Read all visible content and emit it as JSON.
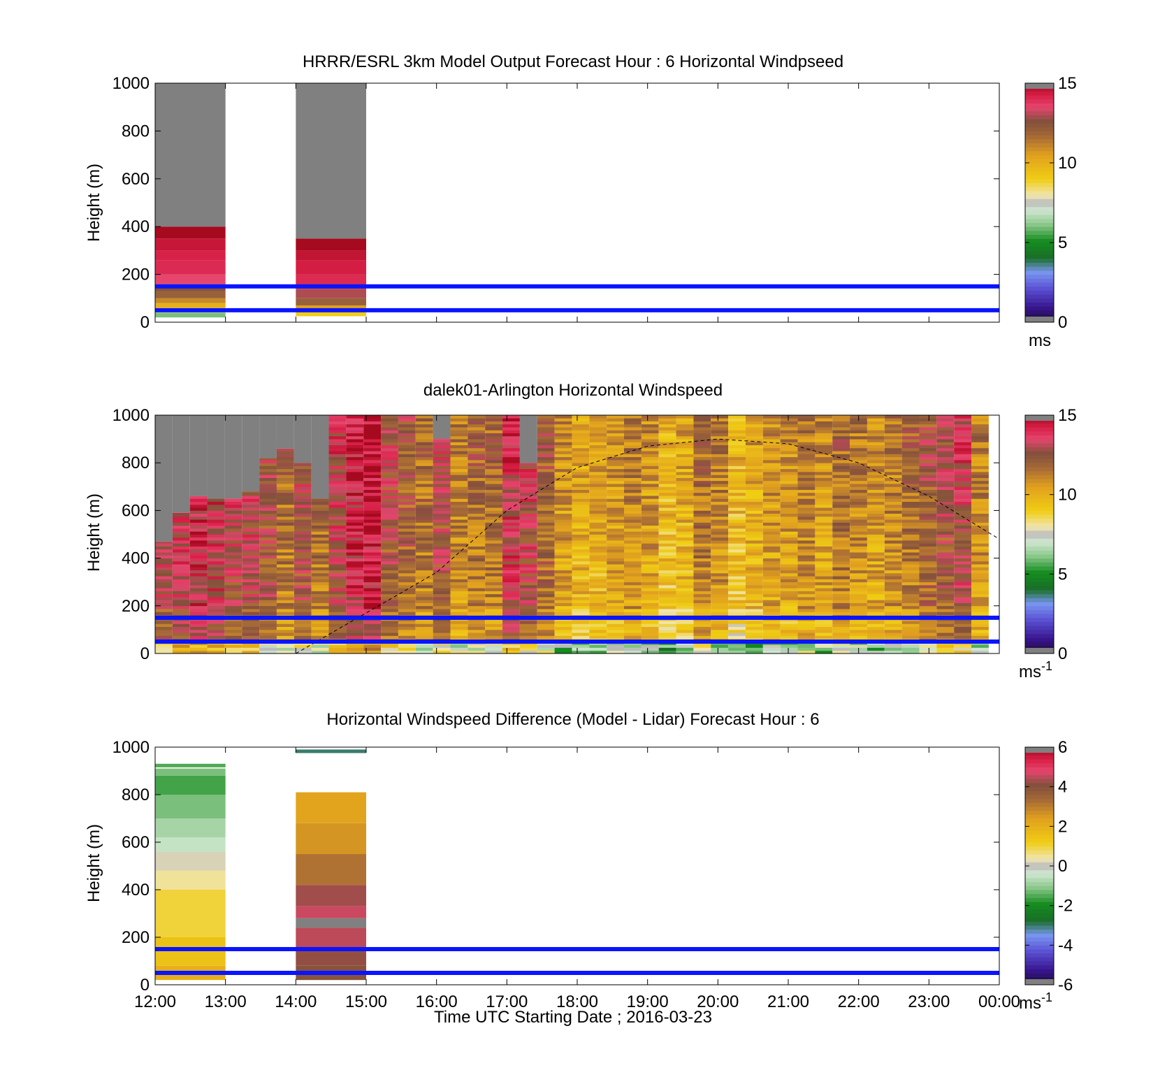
{
  "figure": {
    "xlabel": "Time UTC  Starting Date ; 2016-03-23",
    "xtick_labels": [
      "12:00",
      "13:00",
      "14:00",
      "15:00",
      "16:00",
      "17:00",
      "18:00",
      "19:00",
      "20:00",
      "21:00",
      "22:00",
      "23:00",
      "00:00"
    ],
    "ytick_labels": [
      "0",
      "200",
      "400",
      "600",
      "800",
      "1000"
    ]
  },
  "chart_data": [
    {
      "type": "heatmap",
      "title": "HRRR/ESRL 3km Model Output   Forecast Hour : 6 Horizontal Windpseed",
      "ylabel": "Height (m)",
      "xlim": [
        "12:00",
        "00:00"
      ],
      "ylim": [
        0,
        1000
      ],
      "colorbar": {
        "range": [
          0,
          15
        ],
        "ticks": [
          "0",
          "5",
          "10",
          "15"
        ],
        "unit": "ms"
      },
      "reference_lines_m": [
        50,
        150
      ],
      "columns": [
        {
          "start": "12:00",
          "end": "13:00",
          "profile": [
            [
              20,
              40,
              6
            ],
            [
              40,
              60,
              8.5
            ],
            [
              60,
              80,
              10
            ],
            [
              80,
              100,
              11
            ],
            [
              100,
              130,
              12
            ],
            [
              130,
              160,
              12.5
            ],
            [
              160,
              200,
              13.5
            ],
            [
              200,
              260,
              14
            ],
            [
              260,
              300,
              14.2
            ],
            [
              300,
              350,
              14.5
            ],
            [
              350,
              400,
              15
            ],
            [
              400,
              1000,
              null
            ]
          ]
        },
        {
          "start": "14:00",
          "end": "15:00",
          "profile": [
            [
              25,
              45,
              9
            ],
            [
              45,
              70,
              10.5
            ],
            [
              70,
              100,
              12
            ],
            [
              100,
              140,
              13
            ],
            [
              140,
              200,
              14
            ],
            [
              200,
              260,
              14.3
            ],
            [
              260,
              300,
              14.6
            ],
            [
              300,
              350,
              15
            ],
            [
              350,
              1000,
              null
            ]
          ]
        }
      ]
    },
    {
      "type": "heatmap",
      "title": "dalek01-Arlington  Horizontal Windspeed",
      "ylabel": "Height (m)",
      "xlim": [
        "12:00",
        "00:00"
      ],
      "ylim": [
        0,
        1000
      ],
      "colorbar": {
        "range": [
          0,
          15
        ],
        "ticks": [
          "0",
          "5",
          "10",
          "15"
        ],
        "unit": "ms",
        "unit_superscript": "-1"
      },
      "reference_lines_m": [
        50,
        150
      ],
      "column_top_m": [
        470,
        590,
        660,
        650,
        650,
        680,
        820,
        860,
        800,
        650,
        1000,
        1000,
        1000,
        1000,
        1000,
        1000,
        900,
        1000,
        1000,
        1000,
        1000,
        800,
        1000,
        1000,
        1000,
        1000,
        1000,
        1000,
        1000,
        1000,
        1000,
        1000,
        1000,
        1000,
        1000,
        1000,
        1000,
        1000,
        1000,
        1000,
        1000,
        1000,
        1000,
        1000,
        1000,
        1000,
        1000,
        1000
      ],
      "column_mean_ms": [
        12.5,
        13,
        13.5,
        13,
        12.5,
        12.5,
        12,
        11,
        12,
        11,
        12.5,
        13.5,
        14,
        12,
        11.5,
        11,
        12,
        10.5,
        11,
        11,
        13,
        12.5,
        11.5,
        10,
        9.5,
        9.5,
        10,
        10.5,
        10,
        9,
        9.5,
        11,
        10.5,
        9,
        9.5,
        10,
        10,
        10.5,
        10,
        11,
        10.5,
        10,
        10.5,
        11,
        11.5,
        12,
        12.5,
        10.5
      ],
      "dashed_curve": [
        [
          "16:00",
          340
        ],
        [
          "17:00",
          600
        ],
        [
          "18:00",
          780
        ],
        [
          "19:00",
          870
        ],
        [
          "20:00",
          900
        ],
        [
          "21:00",
          880
        ],
        [
          "22:00",
          800
        ],
        [
          "23:00",
          660
        ],
        [
          "00:00",
          480
        ]
      ]
    },
    {
      "type": "heatmap",
      "title": "Horizontal Windspeed Difference (Model - Lidar) Forecast Hour : 6",
      "ylabel": "Height (m)",
      "xlim": [
        "12:00",
        "00:00"
      ],
      "ylim": [
        0,
        1000
      ],
      "colorbar": {
        "range": [
          -6,
          6
        ],
        "ticks": [
          "-6",
          "-4",
          "-2",
          "0",
          "2",
          "4",
          "6"
        ],
        "unit": "ms",
        "unit_superscript": "-1"
      },
      "reference_lines_m": [
        50,
        150
      ],
      "columns": [
        {
          "start": "12:00",
          "end": "13:00",
          "profile": [
            [
              20,
              80,
              2
            ],
            [
              80,
              200,
              1.5
            ],
            [
              200,
              400,
              1
            ],
            [
              400,
              480,
              0.5
            ],
            [
              480,
              560,
              0.2
            ],
            [
              560,
              620,
              -0.5
            ],
            [
              620,
              700,
              -0.8
            ],
            [
              700,
              800,
              -1.2
            ],
            [
              800,
              880,
              -1.6
            ],
            [
              880,
              910,
              -1.2
            ],
            [
              915,
              930,
              -1.5
            ]
          ]
        },
        {
          "start": "14:00",
          "end": "15:00",
          "profile": [
            [
              20,
              80,
              4
            ],
            [
              80,
              150,
              4.2
            ],
            [
              150,
              240,
              4.5
            ],
            [
              240,
              280,
              null
            ],
            [
              280,
              330,
              4.6
            ],
            [
              330,
              420,
              4.3
            ],
            [
              420,
              550,
              3.2
            ],
            [
              550,
              680,
              2.6
            ],
            [
              680,
              810,
              2.3
            ],
            [
              975,
              990,
              -3
            ]
          ]
        }
      ]
    }
  ]
}
